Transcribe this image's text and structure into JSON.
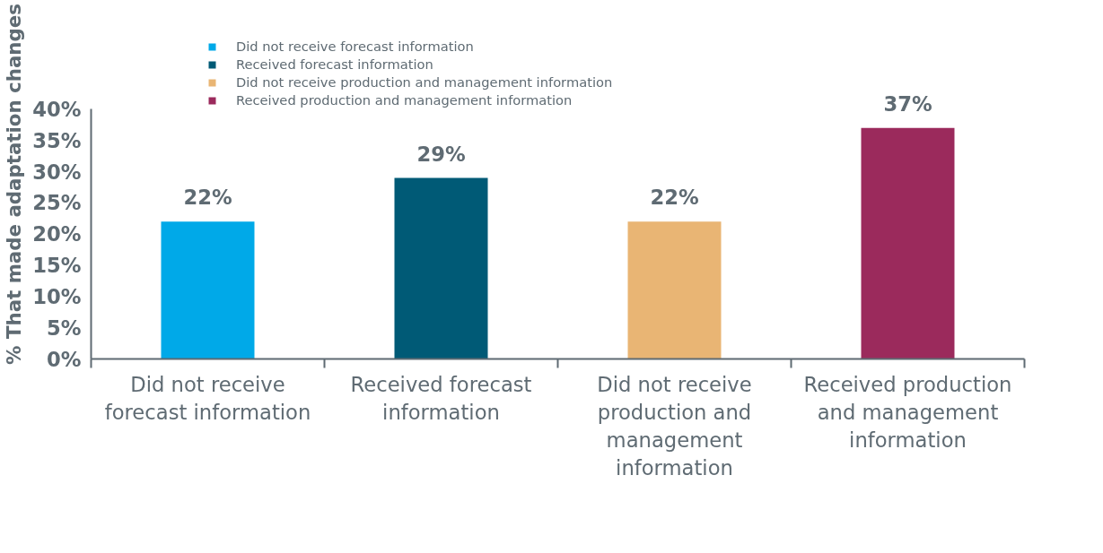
{
  "chart_data": {
    "type": "bar",
    "ylabel": "% That made adaptation changes",
    "categories": [
      "Did not receive forecast information",
      "Received forecast information",
      "Did not receive production and management information",
      "Received production and management information"
    ],
    "series": [
      {
        "name": "Did not receive forecast information",
        "color": "#00a9e8",
        "values": [
          22,
          null,
          null,
          null
        ],
        "value_labels": [
          "22%",
          null,
          null,
          null
        ]
      },
      {
        "name": "Received forecast information",
        "color": "#005a76",
        "values": [
          null,
          29,
          null,
          null
        ],
        "value_labels": [
          null,
          "29%",
          null,
          null
        ]
      },
      {
        "name": "Did not receive production and management information",
        "color": "#e9b574",
        "values": [
          null,
          null,
          22,
          null
        ],
        "value_labels": [
          null,
          null,
          "22%",
          null
        ]
      },
      {
        "name": "Received production and management information",
        "color": "#9b2a5c",
        "values": [
          null,
          null,
          null,
          37
        ],
        "value_labels": [
          null,
          null,
          null,
          "37%"
        ]
      }
    ],
    "ylim": [
      0,
      40
    ],
    "yticks": [
      {
        "value": 0,
        "label": "0%"
      },
      {
        "value": 5,
        "label": "5%"
      },
      {
        "value": 10,
        "label": "10%"
      },
      {
        "value": 15,
        "label": "15%"
      },
      {
        "value": 20,
        "label": "20%"
      },
      {
        "value": 25,
        "label": "25%"
      },
      {
        "value": 30,
        "label": "30%"
      },
      {
        "value": 35,
        "label": "35%"
      },
      {
        "value": 40,
        "label": "40%"
      }
    ],
    "grid": false,
    "legend": "top"
  }
}
